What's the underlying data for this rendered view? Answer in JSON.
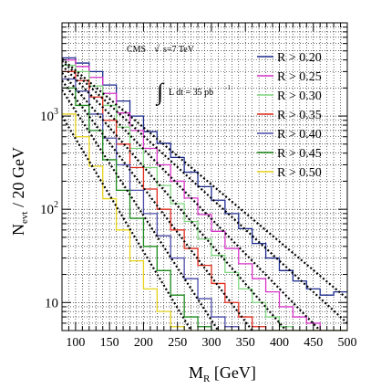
{
  "chart_data": {
    "type": "line",
    "step": true,
    "bin_width": 20,
    "x_edges": [
      80,
      100,
      120,
      140,
      160,
      180,
      200,
      220,
      240,
      260,
      280,
      300,
      320,
      340,
      360,
      380,
      400,
      420,
      440,
      460,
      480,
      500
    ],
    "xlabel_main": "M",
    "xlabel_sub": "R",
    "xlabel_unit": " [GeV]",
    "ylabel_main": "N",
    "ylabel_sub": "evt",
    "ylabel_unit": " / 20 GeV",
    "xlim": [
      80,
      500
    ],
    "ylim": [
      5,
      10000
    ],
    "y_log": true,
    "grid": true,
    "x_ticks": [
      100,
      150,
      200,
      250,
      300,
      350,
      400,
      450,
      500
    ],
    "y_ticks": [
      {
        "value": 10,
        "label_main": "10",
        "label_exp": ""
      },
      {
        "value": 100,
        "label_main": "10",
        "label_exp": "2"
      },
      {
        "value": 1000,
        "label_main": "10",
        "label_exp": "3"
      }
    ],
    "annotation_cms": "CMS",
    "annotation_sqrt": "√",
    "annotation_energy": "s=7 TeV",
    "annotation_integral": "∫",
    "annotation_lumi": "L dt = 35 pb",
    "annotation_lumi_exp": "-1",
    "legend_position": "top-right",
    "series": [
      {
        "name": "R > 0.20",
        "color": "#1a2a8c",
        "values": [
          4200,
          3700,
          3000,
          2150,
          1450,
          1000,
          680,
          510,
          360,
          250,
          175,
          125,
          90,
          62,
          43,
          30,
          22,
          17,
          14,
          12,
          13
        ],
        "fit": [
          [
            80,
            4100
          ],
          [
            500,
            11
          ]
        ]
      },
      {
        "name": "R > 0.25",
        "color": "#d633c7",
        "values": [
          4000,
          3400,
          2600,
          1750,
          1080,
          700,
          450,
          300,
          200,
          132,
          88,
          58,
          38,
          26,
          18,
          13,
          9,
          7,
          6,
          5,
          5
        ],
        "fit": [
          [
            80,
            3900
          ],
          [
            500,
            6
          ]
        ]
      },
      {
        "name": "R > 0.30",
        "color": "#7ed67e",
        "values": [
          3500,
          3000,
          2100,
          1300,
          760,
          450,
          280,
          180,
          115,
          74,
          48,
          32,
          21,
          14,
          10,
          7,
          5.5,
          5,
          5,
          5,
          5
        ],
        "fit": [
          [
            80,
            3500
          ],
          [
            460,
            5
          ]
        ]
      },
      {
        "name": "R > 0.35",
        "color": "#e0291a",
        "values": [
          3000,
          2400,
          1600,
          900,
          500,
          280,
          165,
          100,
          60,
          38,
          25,
          16,
          10,
          7,
          5.5,
          5,
          5,
          5,
          5,
          5,
          5
        ],
        "fit": [
          [
            80,
            2900
          ],
          [
            410,
            5
          ]
        ]
      },
      {
        "name": "R > 0.40",
        "color": "#4a4aa8",
        "values": [
          2500,
          1850,
          1050,
          580,
          300,
          160,
          90,
          52,
          30,
          18,
          11,
          7,
          5.5,
          5,
          5,
          5,
          5,
          5,
          5,
          5,
          5
        ],
        "fit": [
          [
            80,
            2400
          ],
          [
            360,
            5
          ]
        ]
      },
      {
        "name": "R > 0.45",
        "color": "#1a8a1a",
        "values": [
          2000,
          1300,
          700,
          340,
          160,
          80,
          40,
          22,
          12,
          7,
          5.5,
          5,
          5,
          5,
          5,
          5,
          5,
          5,
          5,
          5,
          5
        ],
        "fit": [
          [
            80,
            1900
          ],
          [
            310,
            5
          ]
        ]
      },
      {
        "name": "R > 0.50",
        "color": "#e6d21a",
        "values": [
          1050,
          600,
          290,
          130,
          60,
          28,
          14,
          8,
          5.5,
          5,
          5,
          5,
          5,
          5,
          5,
          5,
          5,
          5,
          5,
          5,
          5
        ],
        "fit": [
          [
            80,
            1000
          ],
          [
            270,
            5
          ]
        ]
      }
    ]
  }
}
